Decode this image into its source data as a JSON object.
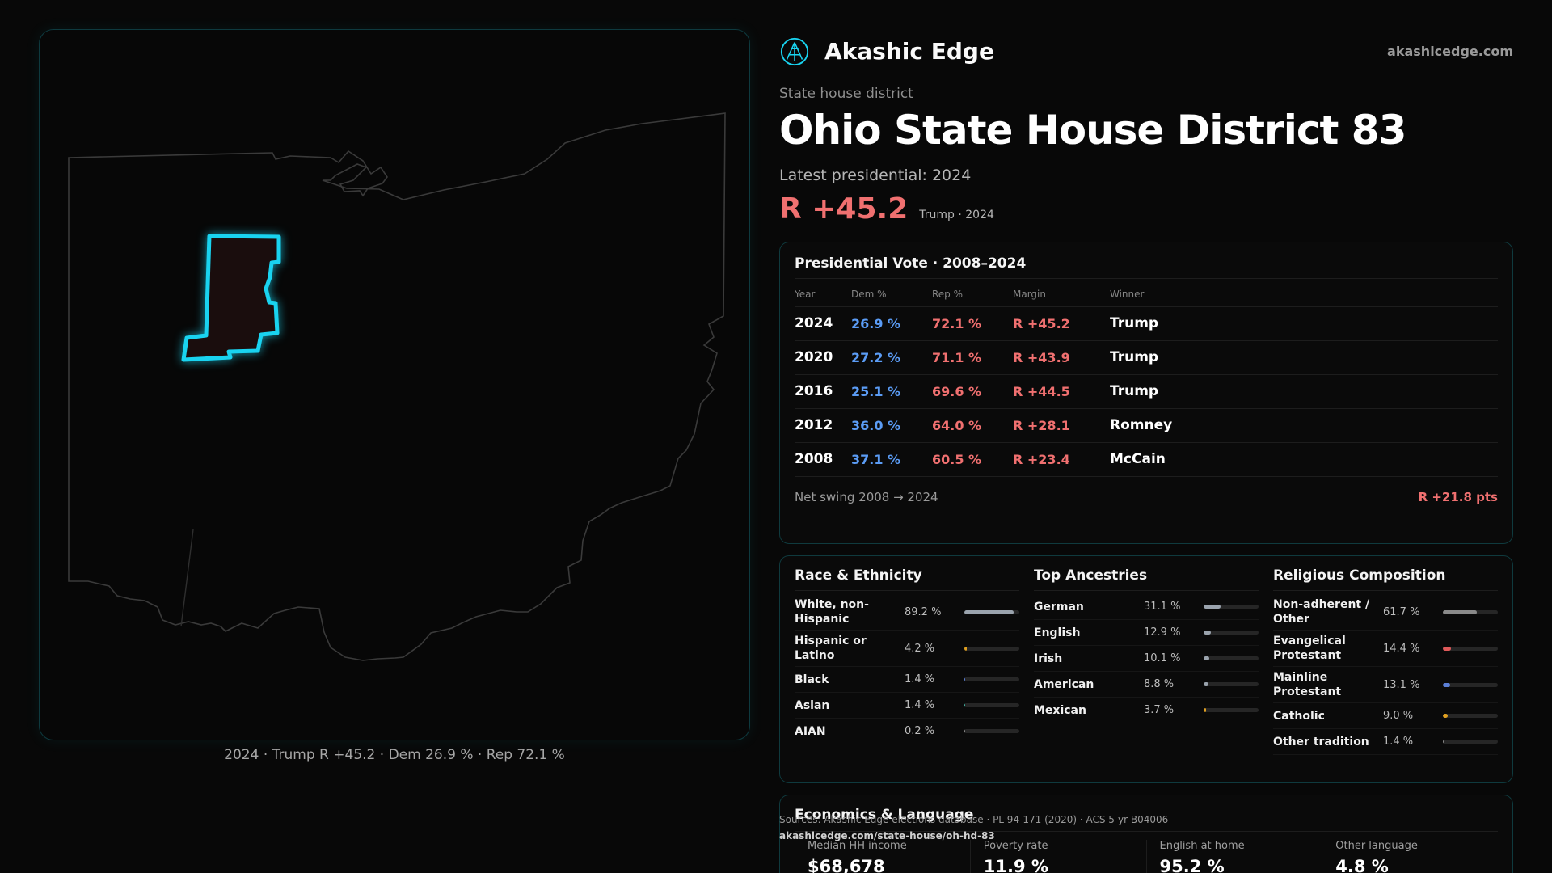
{
  "map": {
    "caption": "2024 · Trump R +45.2 · Dem 26.9 % · Rep 72.1 %"
  },
  "brand": {
    "name": "Akashic Edge",
    "url": "akashicedge.com",
    "icon": "logo-icon"
  },
  "header": {
    "kicker": "State house district",
    "title": "Ohio State House District 83",
    "latest": "Latest presidential: 2024",
    "margin": "R +45.2",
    "margin_sub": "Trump · 2024"
  },
  "presidential": {
    "title": "Presidential Vote · 2008–2024",
    "columns": [
      "Year",
      "Dem %",
      "Rep %",
      "Margin",
      "Winner"
    ],
    "rows": [
      {
        "year": "2024",
        "dem": "26.9 %",
        "rep": "72.1 %",
        "margin": "R +45.2",
        "winner": "Trump"
      },
      {
        "year": "2020",
        "dem": "27.2 %",
        "rep": "71.1 %",
        "margin": "R +43.9",
        "winner": "Trump"
      },
      {
        "year": "2016",
        "dem": "25.1 %",
        "rep": "69.6 %",
        "margin": "R +44.5",
        "winner": "Trump"
      },
      {
        "year": "2012",
        "dem": "36.0 %",
        "rep": "64.0 %",
        "margin": "R +28.1",
        "winner": "Romney"
      },
      {
        "year": "2008",
        "dem": "37.1 %",
        "rep": "60.5 %",
        "margin": "R +23.4",
        "winner": "McCain"
      }
    ],
    "swing_label": "Net swing 2008 → 2024",
    "swing_value": "R +21.8 pts"
  },
  "race": {
    "title": "Race & Ethnicity",
    "items": [
      {
        "label": "White, non-Hispanic",
        "value": "89.2 %",
        "pct": 89.2,
        "color": "#9aa3ad"
      },
      {
        "label": "Hispanic or Latino",
        "value": "4.2 %",
        "pct": 4.2,
        "color": "#e0a020"
      },
      {
        "label": "Black",
        "value": "1.4 %",
        "pct": 1.4,
        "color": "#5b7fd6"
      },
      {
        "label": "Asian",
        "value": "1.4 %",
        "pct": 1.4,
        "color": "#3fb0a0"
      },
      {
        "label": "AIAN",
        "value": "0.2 %",
        "pct": 0.2,
        "color": "#8a8a8a"
      }
    ]
  },
  "ancestries": {
    "title": "Top Ancestries",
    "items": [
      {
        "label": "German",
        "value": "31.1 %",
        "pct": 31.1,
        "color": "#9aa3ad"
      },
      {
        "label": "English",
        "value": "12.9 %",
        "pct": 12.9,
        "color": "#9aa3ad"
      },
      {
        "label": "Irish",
        "value": "10.1 %",
        "pct": 10.1,
        "color": "#9aa3ad"
      },
      {
        "label": "American",
        "value": "8.8 %",
        "pct": 8.8,
        "color": "#9aa3ad"
      },
      {
        "label": "Mexican",
        "value": "3.7 %",
        "pct": 3.7,
        "color": "#e0a020"
      }
    ]
  },
  "religion": {
    "title": "Religious Composition",
    "items": [
      {
        "label": "Non-adherent / Other",
        "value": "61.7 %",
        "pct": 61.7,
        "color": "#8a8a8a"
      },
      {
        "label": "Evangelical Protestant",
        "value": "14.4 %",
        "pct": 14.4,
        "color": "#e05a5a"
      },
      {
        "label": "Mainline Protestant",
        "value": "13.1 %",
        "pct": 13.1,
        "color": "#5b7fd6"
      },
      {
        "label": "Catholic",
        "value": "9.0 %",
        "pct": 9.0,
        "color": "#e0a020"
      },
      {
        "label": "Other tradition",
        "value": "1.4 %",
        "pct": 1.4,
        "color": "#8a8a8a"
      }
    ]
  },
  "economics": {
    "title": "Economics & Language",
    "items": [
      {
        "label": "Median HH income",
        "value": "$68,678"
      },
      {
        "label": "Poverty rate",
        "value": "11.9 %"
      },
      {
        "label": "English at home",
        "value": "95.2 %"
      },
      {
        "label": "Other language",
        "value": "4.8 %"
      }
    ]
  },
  "source": {
    "text": "Sources: Akashic Edge elections database · PL 94-171 (2020) · ACS 5-yr B04006",
    "url": "akashicedge.com/state-house/oh-hd-83"
  },
  "colors": {
    "dem": "#5b9cf5",
    "rep": "#f07070",
    "accent": "#19d3f0"
  }
}
